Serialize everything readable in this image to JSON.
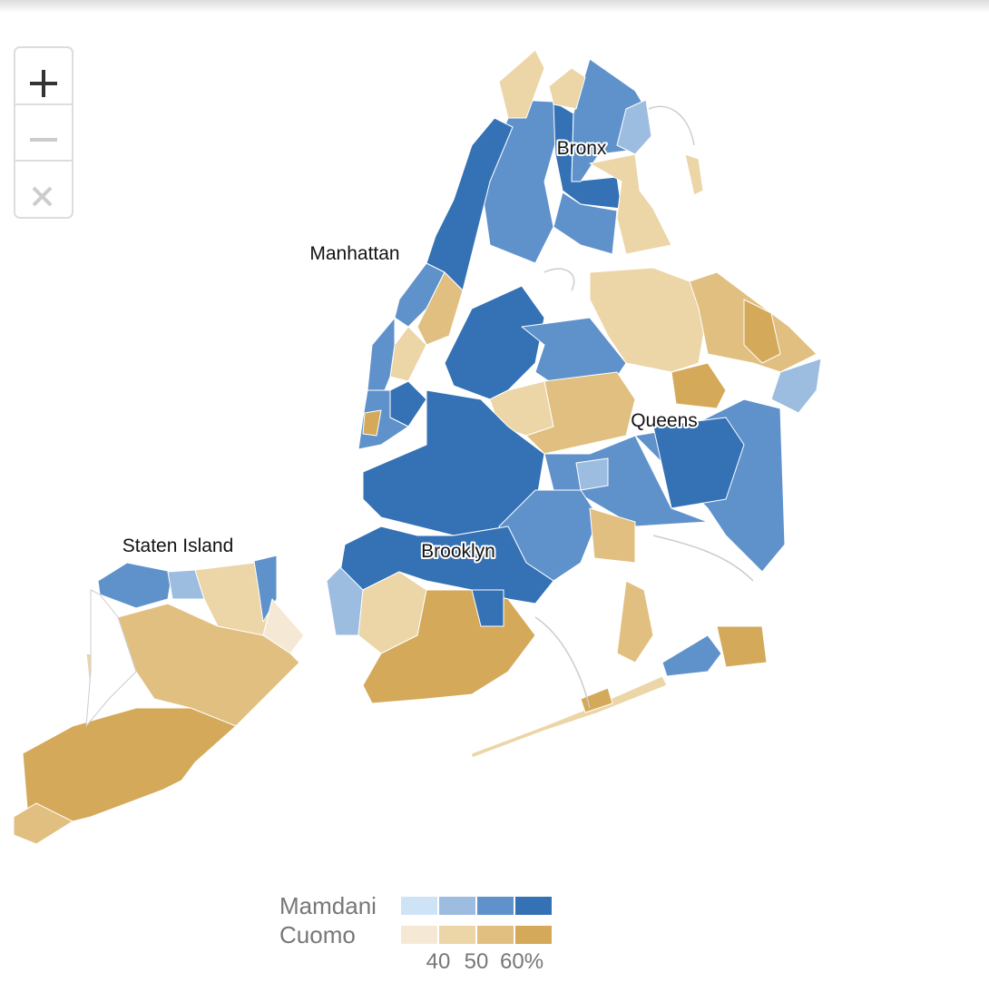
{
  "labels": {
    "bronx": "Bronx",
    "manhattan": "Manhattan",
    "queens": "Queens",
    "brooklyn": "Brooklyn",
    "staten_island": "Staten Island"
  },
  "legend": {
    "rows": [
      {
        "name": "Mamdani",
        "colors": [
          "#cfe3f7",
          "#9dbde0",
          "#5f92cb",
          "#3471b5"
        ]
      },
      {
        "name": "Cuomo",
        "colors": [
          "#f5e9d6",
          "#ecd5a6",
          "#e0bf80",
          "#d4a95a"
        ]
      }
    ],
    "ticks": [
      "40",
      "50",
      "60%"
    ]
  }
}
